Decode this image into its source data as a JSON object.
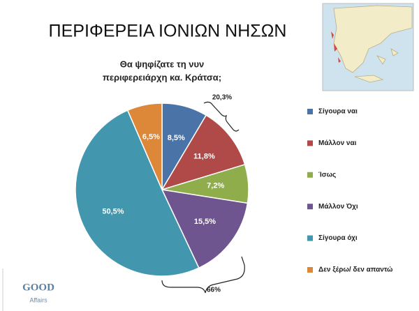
{
  "chart_data": {
    "type": "pie",
    "title": "ΠΕΡΙΦΕΡΕΙΑ ΙΟΝΙΩΝ ΝΗΣΩΝ",
    "subtitle": [
      "Θα ψηφίζατε τη νυν",
      "περιφερειάρχη κα. Κράτσα;"
    ],
    "categories": [
      "Σίγουρα ναι",
      "Μάλλον ναι",
      "Ίσως",
      "Μάλλον Όχι",
      "Σίγουρα όχι",
      "Δεν ξέρω/ δεν απαντώ"
    ],
    "values": [
      8.5,
      11.8,
      7.2,
      15.5,
      50.5,
      6.5
    ],
    "value_labels": [
      "8,5%",
      "11,8%",
      "7,2%",
      "15,5%",
      "50,5%",
      "6,5%"
    ],
    "colors": [
      "#4a74a8",
      "#b04a48",
      "#8fae4b",
      "#6e5590",
      "#4296ad",
      "#dd8838"
    ],
    "annotations": [
      "20,3%",
      "66%"
    ],
    "logo": [
      "GOOD",
      "Affairs"
    ]
  }
}
